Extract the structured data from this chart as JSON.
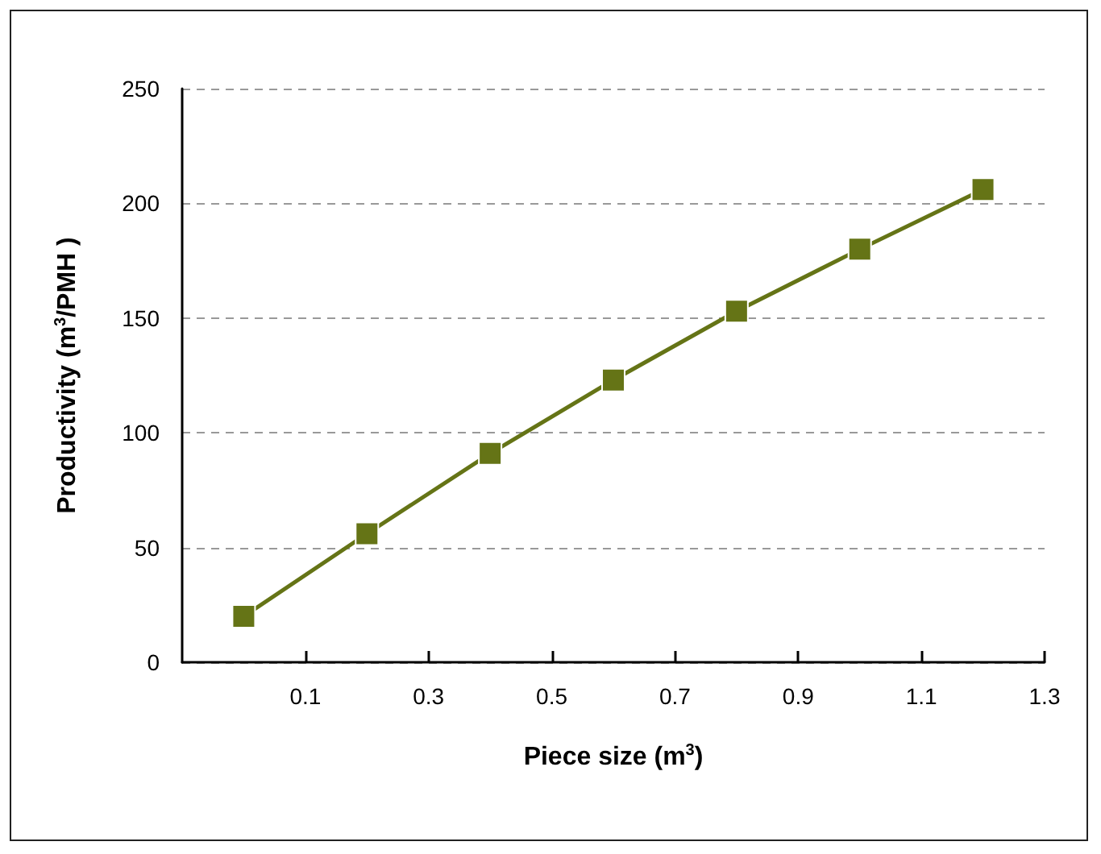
{
  "chart_data": {
    "type": "line",
    "xlabel": "Piece size (m$^{3}$)",
    "ylabel": "Productivity (m$^{3}$/PMH )",
    "x": [
      0,
      0.2,
      0.4,
      0.6,
      0.8,
      1.0,
      1.2
    ],
    "series": [
      {
        "color": "#657416",
        "values": [
          20,
          56,
          91,
          123,
          153,
          180,
          206
        ]
      }
    ],
    "xlim": [
      -0.1,
      1.3
    ],
    "xticks": [
      0.1,
      0.3,
      0.5,
      0.7,
      0.9,
      1.1,
      1.3
    ],
    "ylim": [
      0,
      250
    ],
    "yticks": [
      0,
      50,
      100,
      150,
      200,
      250
    ],
    "grid": "y",
    "marker": "square",
    "line_style": "solid"
  }
}
